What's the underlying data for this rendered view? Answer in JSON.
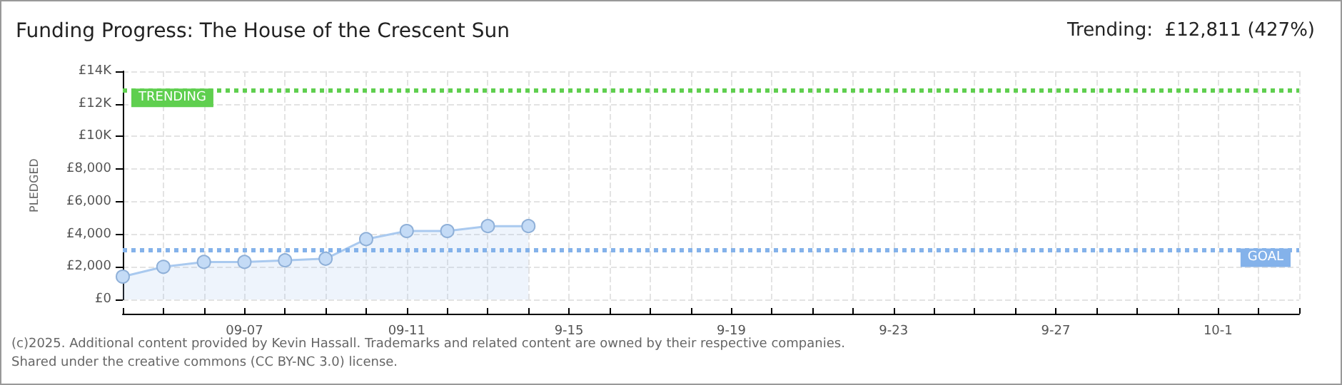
{
  "chart_data": {
    "type": "area",
    "title": "Funding Progress: The House of the Crescent Sun",
    "subtitle": "Trending:  £12,811 (427%)",
    "ylabel": "PLEDGED",
    "x": [
      "--09-04",
      "--09-05",
      "--09-06",
      "--09-07",
      "--09-08",
      "--09-09",
      "--09-10",
      "--09-11",
      "--09-12",
      "--09-13",
      "--09-14"
    ],
    "series": [
      {
        "color": "#a9c9ef",
        "values": [
          1400,
          2000,
          2300,
          2300,
          2400,
          2500,
          3700,
          4200,
          4200,
          4500,
          4500
        ]
      }
    ],
    "marker": "circle",
    "xlim": [
      "--09-04",
      "--10-03"
    ],
    "xticks": [
      {
        "value": "--09-04",
        "label": null
      },
      {
        "value": "--09-05",
        "label": null
      },
      {
        "value": "--09-06",
        "label": null
      },
      {
        "value": "--09-07",
        "label": "09-07"
      },
      {
        "value": "--09-08",
        "label": null
      },
      {
        "value": "--09-09",
        "label": null
      },
      {
        "value": "--09-10",
        "label": null
      },
      {
        "value": "--09-11",
        "label": "09-11"
      },
      {
        "value": "--09-12",
        "label": null
      },
      {
        "value": "--09-13",
        "label": null
      },
      {
        "value": "--09-14",
        "label": null
      },
      {
        "value": "--09-15",
        "label": "9-15"
      },
      {
        "value": "--09-16",
        "label": null
      },
      {
        "value": "--09-17",
        "label": null
      },
      {
        "value": "--09-18",
        "label": null
      },
      {
        "value": "--09-19",
        "label": "9-19"
      },
      {
        "value": "--09-20",
        "label": null
      },
      {
        "value": "--09-21",
        "label": null
      },
      {
        "value": "--09-22",
        "label": null
      },
      {
        "value": "--09-23",
        "label": "9-23"
      },
      {
        "value": "--09-24",
        "label": null
      },
      {
        "value": "--09-25",
        "label": null
      },
      {
        "value": "--09-26",
        "label": null
      },
      {
        "value": "--09-27",
        "label": "9-27"
      },
      {
        "value": "--09-28",
        "label": null
      },
      {
        "value": "--09-29",
        "label": null
      },
      {
        "value": "--09-30",
        "label": null
      },
      {
        "value": "--10-01",
        "label": "10-1"
      },
      {
        "value": "--10-02",
        "label": null
      },
      {
        "value": "--10-03",
        "label": null
      }
    ],
    "ylim": [
      0,
      14000
    ],
    "yticks": [
      {
        "value": 0,
        "label": "£0"
      },
      {
        "value": 2000,
        "label": "£2,000"
      },
      {
        "value": 4000,
        "label": "£4,000"
      },
      {
        "value": 6000,
        "label": "£6,000"
      },
      {
        "value": 8000,
        "label": "£8,000"
      },
      {
        "value": 10000,
        "label": "£10K"
      },
      {
        "value": 12000,
        "label": "£12K"
      },
      {
        "value": 14000,
        "label": "£14K"
      }
    ],
    "grid": true,
    "ref_lines": [
      {
        "axis": "y",
        "value": 12811,
        "label": "TRENDING",
        "color": "#5fcf4f",
        "line_style": "dotted"
      },
      {
        "axis": "y",
        "value": 3000,
        "label": "GOAL",
        "color": "#84b2ea",
        "line_style": "dotted"
      }
    ],
    "annotations": [
      "(c)2025. Additional content provided by Kevin Hassall. Trademarks and related content are owned by their respective companies.",
      "Shared under the creative commons (CC BY-NC 3.0) license."
    ]
  }
}
